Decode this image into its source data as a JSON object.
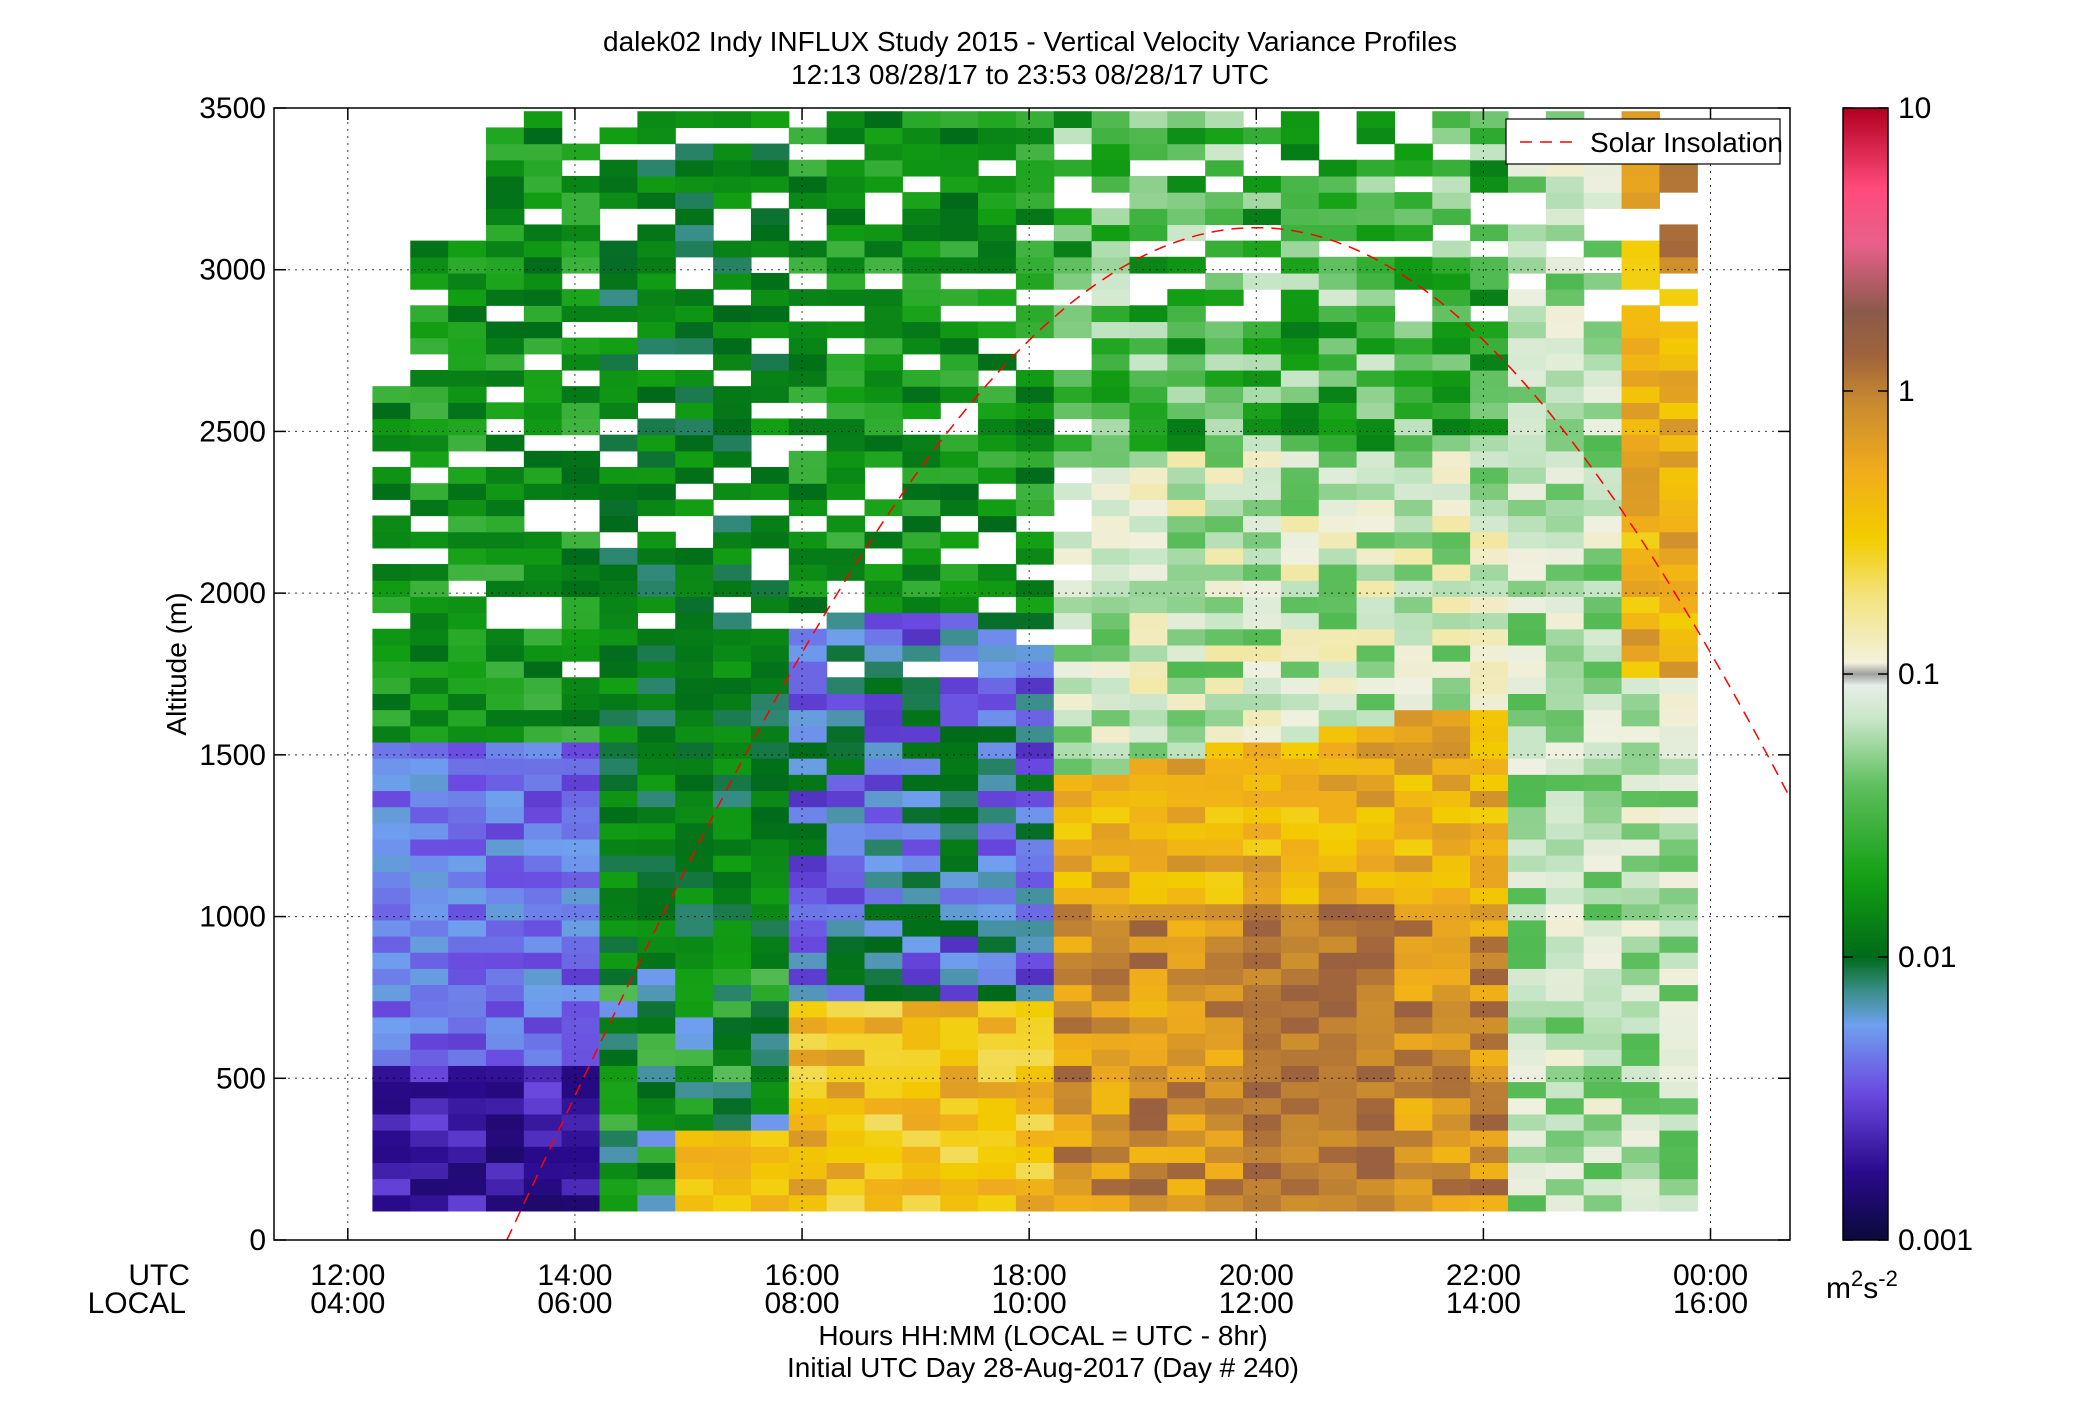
{
  "chart_data": {
    "type": "heatmap",
    "title": "dalek02 Indy INFLUX Study 2015 - Vertical Velocity Variance Profiles",
    "subtitle": "12:13 08/28/17 to 23:53 08/28/17  UTC",
    "ylabel": "Altitude (m)",
    "xlabel": "Hours HH:MM  (LOCAL = UTC - 8hr)",
    "xlabel2": "Initial UTC Day 28-Aug-2017 (Day # 240)",
    "x_axis_names": [
      "UTC",
      "LOCAL"
    ],
    "xlim_hours_utc": [
      11.35,
      24.7
    ],
    "ylim": [
      0,
      3500
    ],
    "y_ticks": [
      0,
      500,
      1000,
      1500,
      2000,
      2500,
      3000,
      3500
    ],
    "x_ticks": [
      {
        "utc": "12:00",
        "local": "04:00",
        "hour": 12
      },
      {
        "utc": "14:00",
        "local": "06:00",
        "hour": 14
      },
      {
        "utc": "16:00",
        "local": "08:00",
        "hour": 16
      },
      {
        "utc": "18:00",
        "local": "10:00",
        "hour": 18
      },
      {
        "utc": "20:00",
        "local": "12:00",
        "hour": 20
      },
      {
        "utc": "22:00",
        "local": "14:00",
        "hour": 22
      },
      {
        "utc": "00:00",
        "local": "16:00",
        "hour": 24
      }
    ],
    "grid": true,
    "legend": {
      "placement": "top-right",
      "entries": [
        "Solar Insolation"
      ]
    },
    "solar_insolation_curve": {
      "color": "#ff0000",
      "style": "dashed",
      "rise_hour_utc": 13.4,
      "peak_hour_utc": 20.0,
      "peak_altitude_m": 3130,
      "set_altitude_at_24_7": 1450
    },
    "colorbar": {
      "scale": "log",
      "ticks": [
        "0.001",
        "0.01",
        "0.1",
        "1",
        "10"
      ],
      "unit": "m",
      "unit_superscript_1": "2",
      "unit_mid": "s",
      "unit_superscript_2": "-2",
      "range": [
        0.001,
        10
      ]
    },
    "data_extent": {
      "time_start_utc": "12:13",
      "time_end_utc": "23:53",
      "alt_min_m": 90,
      "alt_max_m": 3500,
      "bin_minutes": 20,
      "bin_meters": 50
    },
    "series_summary": [
      {
        "time_range_utc": [
          "12:13",
          "14:00"
        ],
        "variance_low_levels": "0.002-0.01",
        "variance_upper": "0.01-0.03"
      },
      {
        "time_range_utc": [
          "14:00",
          "17:00"
        ],
        "variance_low_levels": "0.01-0.2",
        "variance_upper": "0.002-0.01"
      },
      {
        "time_range_utc": [
          "18:00",
          "21:30"
        ],
        "variance_low_levels": "0.2-1",
        "variance_upper": "0.02-0.1"
      },
      {
        "time_range_utc": [
          "22:00",
          "23:53"
        ],
        "variance_low_levels": "0.02-0.1",
        "variance_upper": "0.05-0.5"
      }
    ]
  }
}
